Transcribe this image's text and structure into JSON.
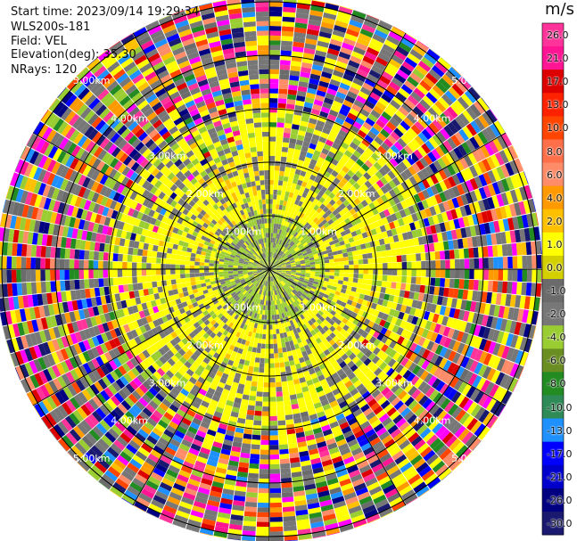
{
  "header": {
    "start_time": "Start time: 2023/09/14 19:29:34",
    "instrument": "WLS200s-181",
    "field": "Field: VEL",
    "elevation": "Elevation(deg): 35.30",
    "nrays": "NRays: 120"
  },
  "colorbar": {
    "unit": "m/s",
    "ticks": [
      "26.0",
      "21.0",
      "17.0",
      "13.0",
      "10.0",
      "8.0",
      "6.0",
      "4.0",
      "2.0",
      "1.0",
      "0.0",
      "-1.0",
      "-2.0",
      "-4.0",
      "-6.0",
      "-8.0",
      "-10.0",
      "-13.0",
      "-17.0",
      "-21.0",
      "-26.0",
      "-30.0"
    ],
    "colors": [
      "#ff3399",
      "#ff1493",
      "#dd0000",
      "#ff2200",
      "#ff4500",
      "#ff6f4a",
      "#ff8c69",
      "#ff9900",
      "#ffc000",
      "#ffff00",
      "#d4d000",
      "#6b6b6b",
      "#777777",
      "#9acd32",
      "#6b8e23",
      "#228b22",
      "#2e8b57",
      "#1e90ff",
      "#0000ff",
      "#0000cd",
      "#000080",
      "#191970"
    ]
  },
  "chart_data": {
    "type": "ppi",
    "field": "VEL",
    "unit": "m/s",
    "elevation_deg": 35.3,
    "nrays": 120,
    "range_rings_km": [
      1.0,
      2.0,
      3.0,
      4.0,
      5.0
    ],
    "range_ring_labels": [
      "1.00km",
      "2.00km",
      "3.00km",
      "4.00km",
      "5.00km"
    ],
    "spokes_deg": [
      0,
      30,
      60,
      90,
      120,
      150,
      180,
      210,
      240,
      270,
      300,
      330
    ],
    "dominant_velocity_by_range": [
      {
        "range_km": 0.5,
        "typical": "-2.0 to 0.0"
      },
      {
        "range_km": 1.5,
        "typical": "0.0 to 2.0"
      },
      {
        "range_km": 2.5,
        "typical": "1.0 to 2.0"
      },
      {
        "range_km": 4.0,
        "typical": "noise (-30.0 to 26.0)"
      }
    ]
  }
}
